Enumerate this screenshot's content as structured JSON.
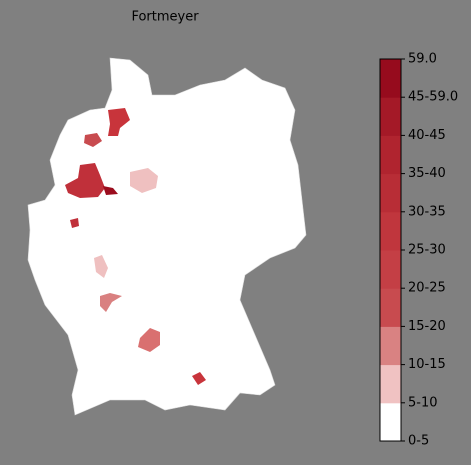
{
  "title": "Fortmeyer",
  "colorbar": {
    "labels": [
      "0-5",
      "5-10",
      "10-15",
      "15-20",
      "20-25",
      "25-30",
      "30-35",
      "35-40",
      "40-45",
      "45-59.0",
      "59.0"
    ],
    "colors": [
      "#ffffff",
      "#f0c2c2",
      "#d98282",
      "#c84b4f",
      "#c43f45",
      "#c0363d",
      "#b82d36",
      "#b0242f",
      "#a41927",
      "#960b1d"
    ]
  }
}
